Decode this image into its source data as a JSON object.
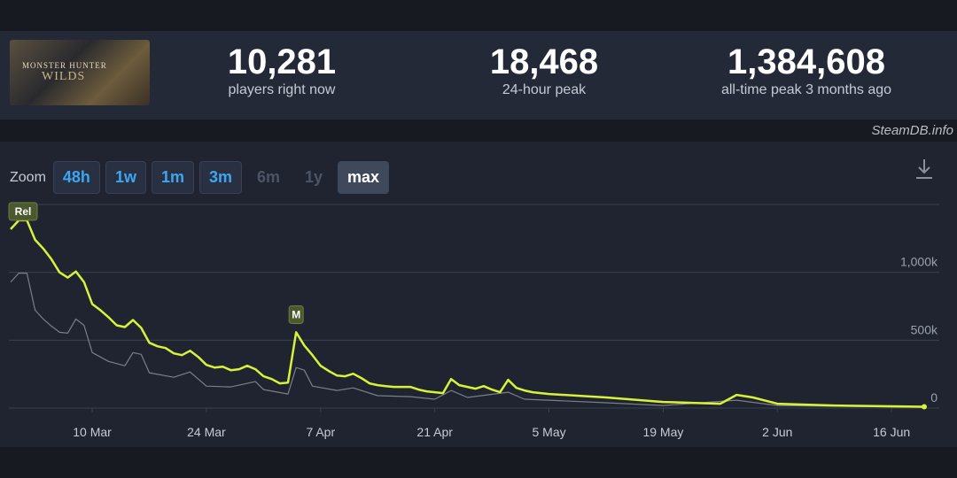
{
  "header": {
    "logo_text": [
      "MONSTER HUNTER",
      "WILDS"
    ],
    "stats": [
      {
        "value": "10,281",
        "label": "players right now"
      },
      {
        "value": "18,468",
        "label": "24-hour peak"
      },
      {
        "value": "1,384,608",
        "label": "all-time peak 3 months ago"
      }
    ]
  },
  "source": "SteamDB.info",
  "zoom": {
    "label": "Zoom",
    "buttons": [
      {
        "text": "48h",
        "state": "enabled"
      },
      {
        "text": "1w",
        "state": "enabled"
      },
      {
        "text": "1m",
        "state": "enabled"
      },
      {
        "text": "3m",
        "state": "enabled"
      },
      {
        "text": "6m",
        "state": "disabled"
      },
      {
        "text": "1y",
        "state": "disabled"
      },
      {
        "text": "max",
        "state": "active"
      }
    ]
  },
  "chart_data": {
    "type": "line",
    "xlim": [
      "28 Feb",
      "20 Jun"
    ],
    "xticks": [
      "10 Mar",
      "24 Mar",
      "7 Apr",
      "21 Apr",
      "5 May",
      "19 May",
      "2 Jun",
      "16 Jun"
    ],
    "ylim": [
      0,
      1500000
    ],
    "yticks": [
      0,
      {
        "value": 500000,
        "label": "500k"
      },
      {
        "value": 1000000,
        "label": "1,000k"
      }
    ],
    "grid": true,
    "annotations": [
      {
        "label": "Rel",
        "x": "28 Feb"
      },
      {
        "label": "M",
        "x": "4 Apr"
      }
    ],
    "series": [
      {
        "color": "#d6f33a",
        "x": [
          "28 Feb",
          "1 Mar",
          "2 Mar",
          "3 Mar",
          "4 Mar",
          "5 Mar",
          "6 Mar",
          "7 Mar",
          "8 Mar",
          "9 Mar",
          "10 Mar",
          "11 Mar",
          "12 Mar",
          "13 Mar",
          "14 Mar",
          "15 Mar",
          "16 Mar",
          "17 Mar",
          "18 Mar",
          "19 Mar",
          "20 Mar",
          "21 Mar",
          "22 Mar",
          "23 Mar",
          "24 Mar",
          "25 Mar",
          "26 Mar",
          "27 Mar",
          "28 Mar",
          "29 Mar",
          "30 Mar",
          "31 Mar",
          "1 Apr",
          "2 Apr",
          "3 Apr",
          "4 Apr",
          "5 Apr",
          "6 Apr",
          "7 Apr",
          "8 Apr",
          "9 Apr",
          "10 Apr",
          "11 Apr",
          "12 Apr",
          "13 Apr",
          "14 Apr",
          "15 Apr",
          "16 Apr",
          "17 Apr",
          "18 Apr",
          "19 Apr",
          "20 Apr",
          "21 Apr",
          "22 Apr",
          "23 Apr",
          "24 Apr",
          "25 Apr",
          "26 Apr",
          "27 Apr",
          "28 Apr",
          "29 Apr",
          "30 Apr",
          "1 May",
          "2 May",
          "3 May",
          "4 May",
          "5 May",
          "12 May",
          "19 May",
          "26 May",
          "28 May",
          "30 May",
          "2 Jun",
          "9 Jun",
          "16 Jun",
          "20 Jun"
        ],
        "values": [
          1318000,
          1383000,
          1383000,
          1240000,
          1175000,
          1097000,
          1000000,
          961000,
          1006000,
          929000,
          766000,
          721000,
          669000,
          610000,
          597000,
          649000,
          591000,
          481000,
          455000,
          442000,
          403000,
          390000,
          422000,
          377000,
          318000,
          299000,
          305000,
          279000,
          286000,
          312000,
          286000,
          234000,
          214000,
          182000,
          188000,
          558000,
          461000,
          390000,
          312000,
          273000,
          240000,
          234000,
          253000,
          221000,
          182000,
          169000,
          162000,
          156000,
          156000,
          156000,
          136000,
          123000,
          117000,
          110000,
          214000,
          169000,
          156000,
          143000,
          162000,
          136000,
          117000,
          208000,
          149000,
          130000,
          117000,
          110000,
          104000,
          78000,
          45000,
          32000,
          97000,
          78000,
          32000,
          19000,
          13000,
          10000
        ]
      },
      {
        "color": "#7b7f86",
        "x": [
          "28 Feb",
          "1 Mar",
          "2 Mar",
          "3 Mar",
          "4 Mar",
          "5 Mar",
          "6 Mar",
          "7 Mar",
          "8 Mar",
          "9 Mar",
          "10 Mar",
          "12 Mar",
          "14 Mar",
          "15 Mar",
          "16 Mar",
          "17 Mar",
          "20 Mar",
          "22 Mar",
          "23 Mar",
          "24 Mar",
          "27 Mar",
          "30 Mar",
          "31 Mar",
          "3 Apr",
          "4 Apr",
          "5 Apr",
          "6 Apr",
          "9 Apr",
          "11 Apr",
          "14 Apr",
          "18 Apr",
          "21 Apr",
          "23 Apr",
          "25 Apr",
          "30 Apr",
          "2 May",
          "5 May",
          "12 May",
          "19 May",
          "28 May",
          "2 Jun",
          "20 Jun"
        ],
        "values": [
          929000,
          994000,
          994000,
          721000,
          656000,
          604000,
          558000,
          552000,
          656000,
          610000,
          409000,
          344000,
          312000,
          409000,
          396000,
          260000,
          227000,
          266000,
          214000,
          162000,
          156000,
          195000,
          136000,
          104000,
          299000,
          279000,
          162000,
          130000,
          149000,
          91000,
          84000,
          65000,
          130000,
          78000,
          117000,
          65000,
          58000,
          39000,
          19000,
          58000,
          19000,
          6000
        ]
      }
    ]
  }
}
